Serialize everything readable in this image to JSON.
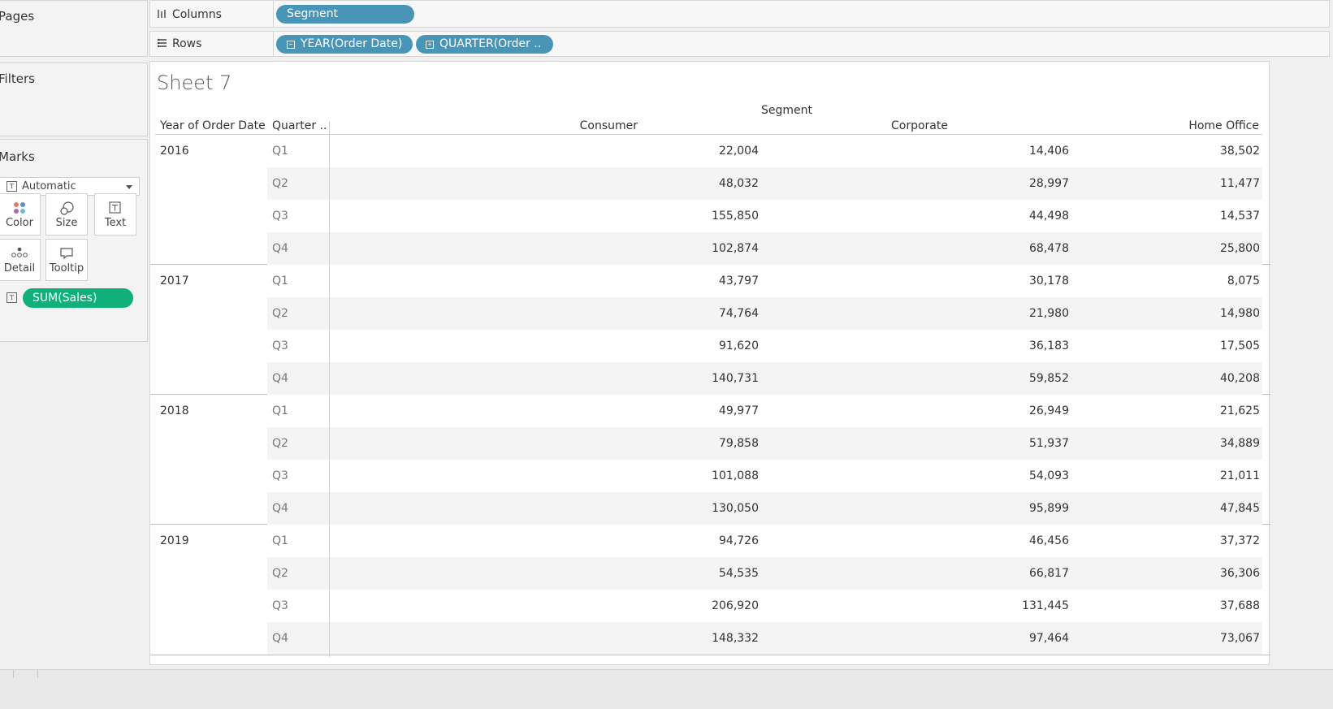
{
  "left_panel": {
    "pages_title": "Pages",
    "filters_title": "Filters",
    "marks": {
      "title": "Marks",
      "mark_type": "Automatic",
      "buttons": [
        "Color",
        "Size",
        "Text",
        "Detail",
        "Tooltip"
      ],
      "field_pill": "SUM(Sales)"
    }
  },
  "shelves": {
    "columns_label": "Columns",
    "rows_label": "Rows",
    "columns_pills": [
      "Segment"
    ],
    "rows_pills": [
      "YEAR(Order Date)",
      "QUARTER(Order .."
    ]
  },
  "sheet": {
    "title": "Sheet 7",
    "segment_header": "Segment",
    "col_headers": {
      "year": "Year of Order Date",
      "quarter": "Quarter ..",
      "consumer": "Consumer",
      "corporate": "Corporate",
      "home_office": "Home Office"
    },
    "years": [
      {
        "year": "2016",
        "rows": [
          {
            "q": "Q1",
            "consumer": "22,004",
            "corporate": "14,406",
            "home_office": "38,502"
          },
          {
            "q": "Q2",
            "consumer": "48,032",
            "corporate": "28,997",
            "home_office": "11,477"
          },
          {
            "q": "Q3",
            "consumer": "155,850",
            "corporate": "44,498",
            "home_office": "14,537"
          },
          {
            "q": "Q4",
            "consumer": "102,874",
            "corporate": "68,478",
            "home_office": "25,800"
          }
        ]
      },
      {
        "year": "2017",
        "rows": [
          {
            "q": "Q1",
            "consumer": "43,797",
            "corporate": "30,178",
            "home_office": "8,075"
          },
          {
            "q": "Q2",
            "consumer": "74,764",
            "corporate": "21,980",
            "home_office": "14,980"
          },
          {
            "q": "Q3",
            "consumer": "91,620",
            "corporate": "36,183",
            "home_office": "17,505"
          },
          {
            "q": "Q4",
            "consumer": "140,731",
            "corporate": "59,852",
            "home_office": "40,208"
          }
        ]
      },
      {
        "year": "2018",
        "rows": [
          {
            "q": "Q1",
            "consumer": "49,977",
            "corporate": "26,949",
            "home_office": "21,625"
          },
          {
            "q": "Q2",
            "consumer": "79,858",
            "corporate": "51,937",
            "home_office": "34,889"
          },
          {
            "q": "Q3",
            "consumer": "101,088",
            "corporate": "54,093",
            "home_office": "21,011"
          },
          {
            "q": "Q4",
            "consumer": "130,050",
            "corporate": "95,899",
            "home_office": "47,845"
          }
        ]
      },
      {
        "year": "2019",
        "rows": [
          {
            "q": "Q1",
            "consumer": "94,726",
            "corporate": "46,456",
            "home_office": "37,372"
          },
          {
            "q": "Q2",
            "consumer": "54,535",
            "corporate": "66,817",
            "home_office": "36,306"
          },
          {
            "q": "Q3",
            "consumer": "206,920",
            "corporate": "131,445",
            "home_office": "37,688"
          },
          {
            "q": "Q4",
            "consumer": "148,332",
            "corporate": "97,464",
            "home_office": "73,067"
          }
        ]
      }
    ]
  },
  "colors": {
    "dimension_pill": "#4995b8",
    "measure_pill": "#0fb07b"
  }
}
